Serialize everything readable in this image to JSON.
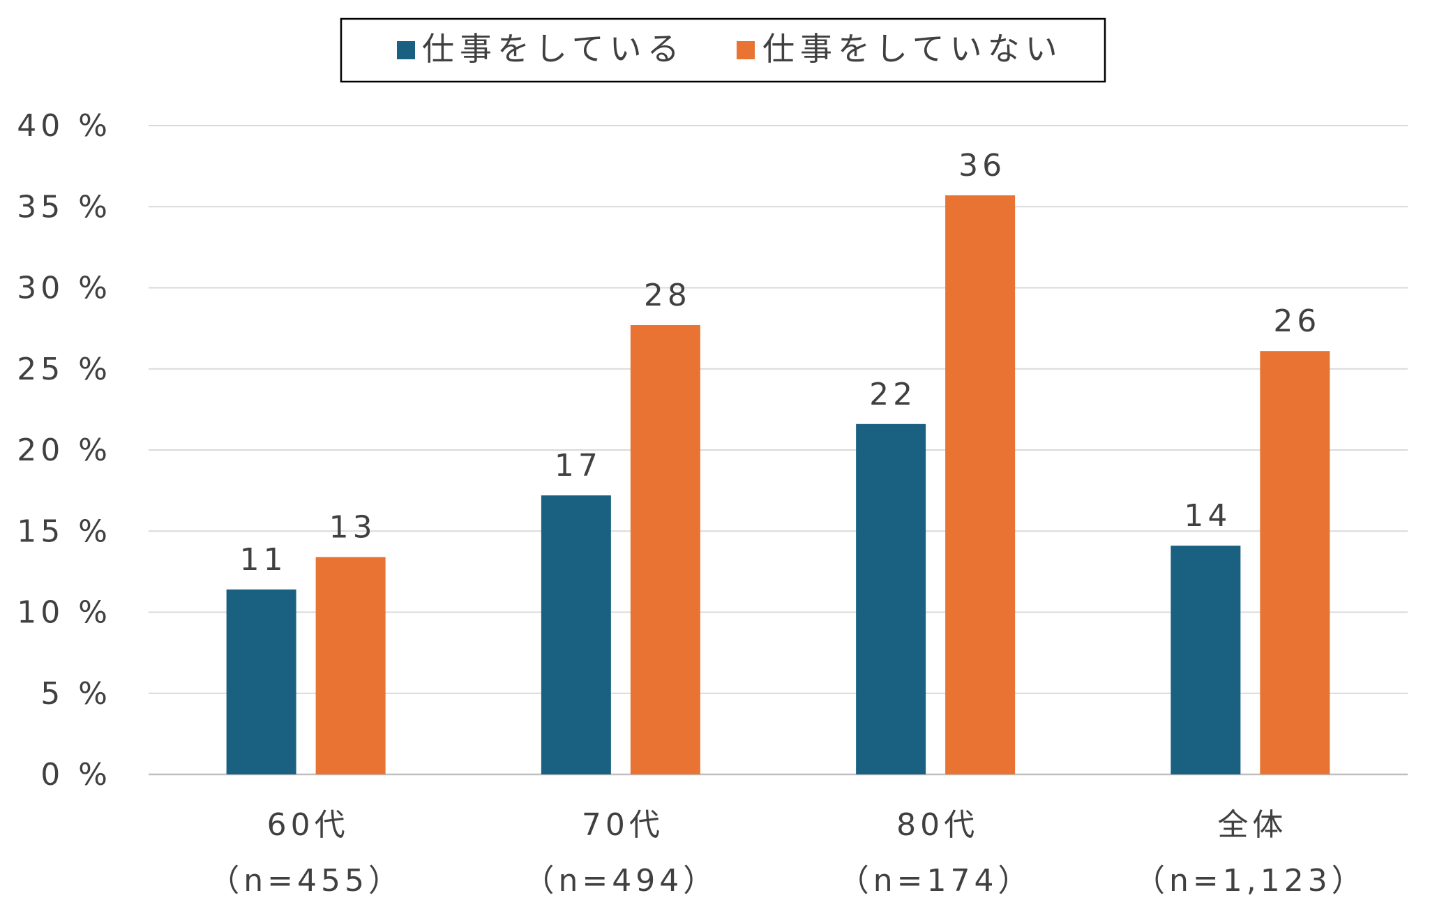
{
  "chart_data": {
    "type": "bar",
    "categories": [
      [
        "60代",
        "（n=455）"
      ],
      [
        "70代",
        "（n=494）"
      ],
      [
        "80代",
        "（n=174）"
      ],
      [
        "全体",
        "（n=1,123）"
      ]
    ],
    "series": [
      {
        "name": "仕事をしている",
        "color": "#1a6080",
        "values": [
          11.4,
          17.2,
          21.6,
          14.1
        ],
        "labels": [
          "11",
          "17",
          "22",
          "14"
        ]
      },
      {
        "name": "仕事をしていない",
        "color": "#e87332",
        "values": [
          13.4,
          27.7,
          35.7,
          26.1
        ],
        "labels": [
          "13",
          "28",
          "36",
          "26"
        ]
      }
    ],
    "ylim": [
      0,
      40
    ],
    "yticks": [
      0,
      5,
      10,
      15,
      20,
      25,
      30,
      35,
      40
    ],
    "ytick_labels": [
      "0 %",
      "5 %",
      "10 %",
      "15 %",
      "20 %",
      "25 %",
      "30 %",
      "35 %",
      "40 %"
    ],
    "grid": true,
    "legend_position": "top",
    "legend_border": true
  }
}
